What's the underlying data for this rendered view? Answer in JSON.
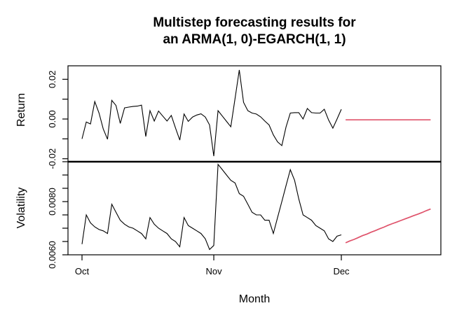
{
  "title": {
    "line1": "Multistep forecasting results for",
    "line2": "an ARMA(1, 0)-EGARCH(1, 1)"
  },
  "colors": {
    "background": "#ffffff",
    "axis": "#000000",
    "history_line": "#000000",
    "forecast_line": "#df536b"
  },
  "x_axis": {
    "label": "Month",
    "ticks": [
      {
        "day": 0,
        "label": "Oct"
      },
      {
        "day": 31,
        "label": "Nov"
      },
      {
        "day": 61,
        "label": "Dec"
      }
    ]
  },
  "chart_data": [
    {
      "type": "line",
      "panel": "return",
      "ylabel": "Return",
      "ylim": [
        -0.0215,
        0.0268
      ],
      "yticks": [
        {
          "value": 0.02,
          "label": "0.02"
        },
        {
          "value": 0.01,
          "label": ""
        },
        {
          "value": 0.0,
          "label": "0.00"
        },
        {
          "value": -0.01,
          "label": ""
        },
        {
          "value": -0.02,
          "label": "-0.02"
        }
      ],
      "series": [
        {
          "name": "observed",
          "color_key": "history_line",
          "start_day": 0,
          "values": [
            -0.01,
            -0.0015,
            -0.0025,
            0.0088,
            0.003,
            -0.005,
            -0.0102,
            0.0094,
            0.0068,
            -0.0022,
            0.0056,
            0.006,
            0.0063,
            0.0065,
            0.007,
            -0.0088,
            0.0042,
            -0.001,
            0.004,
            0.0015,
            -0.001,
            0.0018,
            -0.0045,
            -0.0106,
            0.0025,
            -0.0012,
            0.001,
            0.002,
            0.0026,
            0.001,
            -0.003,
            -0.0187,
            0.0042,
            0.0015,
            -0.0012,
            -0.0039,
            0.0104,
            0.0247,
            0.0084,
            0.0042,
            0.003,
            0.0025,
            0.0011,
            -0.001,
            -0.003,
            -0.008,
            -0.0115,
            -0.0134,
            -0.004,
            0.003,
            0.0032,
            0.0032,
            0.0,
            0.0053,
            0.0032,
            0.003,
            0.003,
            0.0049,
            -0.0005,
            -0.0046,
            0.0,
            0.0049
          ]
        },
        {
          "name": "forecast",
          "color_key": "forecast_line",
          "start_day": 62,
          "values": [
            -0.0004,
            -0.0004,
            -0.0004,
            -0.0004,
            -0.0004,
            -0.0004,
            -0.0004,
            -0.0004,
            -0.0004,
            -0.0004,
            -0.0004,
            -0.0004,
            -0.0004,
            -0.0004,
            -0.0004,
            -0.0004,
            -0.0004,
            -0.0004,
            -0.0004,
            -0.0004,
            -0.0004
          ]
        }
      ]
    },
    {
      "type": "line",
      "panel": "volatility",
      "ylabel": "Volatility",
      "ylim": [
        0.006,
        0.0095
      ],
      "yticks": [
        {
          "value": 0.0095,
          "label": ""
        },
        {
          "value": 0.009,
          "label": ""
        },
        {
          "value": 0.0085,
          "label": ""
        },
        {
          "value": 0.008,
          "label": "0.0080"
        },
        {
          "value": 0.0075,
          "label": ""
        },
        {
          "value": 0.007,
          "label": ""
        },
        {
          "value": 0.0065,
          "label": ""
        },
        {
          "value": 0.006,
          "label": "0.0060"
        }
      ],
      "series": [
        {
          "name": "observed",
          "color_key": "history_line",
          "start_day": 0,
          "values": [
            0.0064,
            0.0075,
            0.0072,
            0.00705,
            0.00695,
            0.0069,
            0.0068,
            0.0079,
            0.0076,
            0.0073,
            0.00715,
            0.00705,
            0.007,
            0.0069,
            0.0068,
            0.0066,
            0.0074,
            0.00715,
            0.007,
            0.0069,
            0.0068,
            0.0066,
            0.0065,
            0.0063,
            0.0074,
            0.0071,
            0.007,
            0.0069,
            0.0068,
            0.0066,
            0.0062,
            0.00635,
            0.0094,
            0.0092,
            0.009,
            0.0088,
            0.0087,
            0.0083,
            0.0082,
            0.0079,
            0.0076,
            0.0075,
            0.0075,
            0.0073,
            0.0073,
            0.0068,
            0.0074,
            0.008,
            0.0086,
            0.0092,
            0.0088,
            0.0081,
            0.0075,
            0.0074,
            0.0073,
            0.0071,
            0.007,
            0.0069,
            0.0066,
            0.0065,
            0.0067,
            0.00675
          ]
        },
        {
          "name": "forecast",
          "color_key": "forecast_line",
          "start_day": 62,
          "values": [
            0.00645,
            0.00652,
            0.00658,
            0.00665,
            0.00672,
            0.00678,
            0.00685,
            0.00691,
            0.00698,
            0.00704,
            0.00711,
            0.00717,
            0.00723,
            0.00729,
            0.00735,
            0.00741,
            0.00747,
            0.00753,
            0.00759,
            0.00766,
            0.00772
          ]
        }
      ]
    }
  ]
}
